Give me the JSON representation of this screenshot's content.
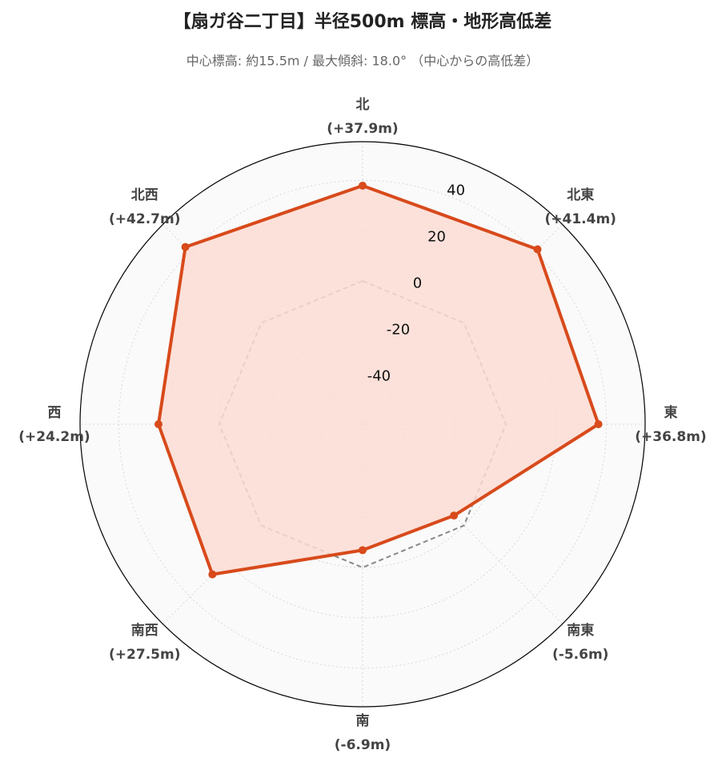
{
  "chart_data": {
    "type": "radar",
    "title": "【扇ガ谷二丁目】半径500m 標高・地形高低差",
    "subtitle": "中心標高: 約15.5m / 最大傾斜: 18.0° （中心からの高低差）",
    "categories": [
      "北",
      "北東",
      "東",
      "南東",
      "南",
      "南西",
      "西",
      "北西"
    ],
    "values": [
      37.9,
      41.4,
      36.8,
      -5.6,
      -6.9,
      27.5,
      24.2,
      42.7
    ],
    "value_labels": [
      "(+37.9m)",
      "(+41.4m)",
      "(+36.8m)",
      "(-5.6m)",
      "(-6.9m)",
      "(+27.5m)",
      "(+24.2m)",
      "(+42.7m)"
    ],
    "color": "#d84a1b",
    "fill_color": "#fcdcd3",
    "baseline": 0,
    "ylim": [
      -57,
      55.4
    ],
    "yticks": [
      -40,
      -20,
      0,
      20,
      40
    ],
    "grid": true
  }
}
